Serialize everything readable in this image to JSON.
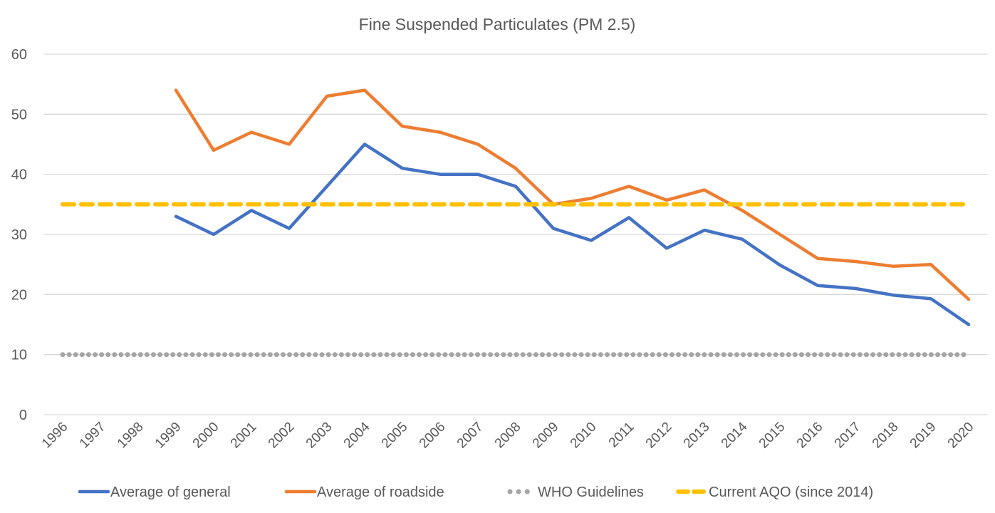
{
  "chart_data": {
    "type": "line",
    "title": "Fine Suspended Particulates (PM 2.5)",
    "xlabel": "",
    "ylabel": "",
    "categories": [
      "1996",
      "1997",
      "1998",
      "1999",
      "2000",
      "2001",
      "2002",
      "2003",
      "2004",
      "2005",
      "2006",
      "2007",
      "2008",
      "2009",
      "2010",
      "2011",
      "2012",
      "2013",
      "2014",
      "2015",
      "2016",
      "2017",
      "2018",
      "2019",
      "2020"
    ],
    "ylim": [
      0,
      60
    ],
    "yticks": [
      0,
      10,
      20,
      30,
      40,
      50,
      60
    ],
    "grid": true,
    "legend_position": "bottom",
    "series": [
      {
        "name": "Average of general",
        "color": "#4472C4",
        "style": "solid",
        "values": [
          null,
          null,
          null,
          33,
          30,
          34,
          31,
          38,
          45,
          41,
          40,
          40,
          38,
          31,
          29,
          32.8,
          27.7,
          30.7,
          29.2,
          24.9,
          21.5,
          21,
          19.9,
          19.3,
          15
        ]
      },
      {
        "name": "Average of roadside",
        "color": "#ED7D31",
        "style": "solid",
        "values": [
          null,
          null,
          null,
          54,
          44,
          47,
          45,
          53,
          54,
          48,
          47,
          45,
          41,
          35,
          36,
          38,
          35.7,
          37.4,
          34,
          30,
          26,
          25.5,
          24.7,
          25,
          19.2
        ]
      },
      {
        "name": "WHO Guidelines",
        "color": "#A5A5A5",
        "style": "dotted",
        "values": [
          10,
          10,
          10,
          10,
          10,
          10,
          10,
          10,
          10,
          10,
          10,
          10,
          10,
          10,
          10,
          10,
          10,
          10,
          10,
          10,
          10,
          10,
          10,
          10,
          10
        ]
      },
      {
        "name": "Current AQO (since 2014)",
        "color": "#FFC000",
        "style": "dashed",
        "values": [
          35,
          35,
          35,
          35,
          35,
          35,
          35,
          35,
          35,
          35,
          35,
          35,
          35,
          35,
          35,
          35,
          35,
          35,
          35,
          35,
          35,
          35,
          35,
          35,
          35
        ]
      }
    ]
  }
}
